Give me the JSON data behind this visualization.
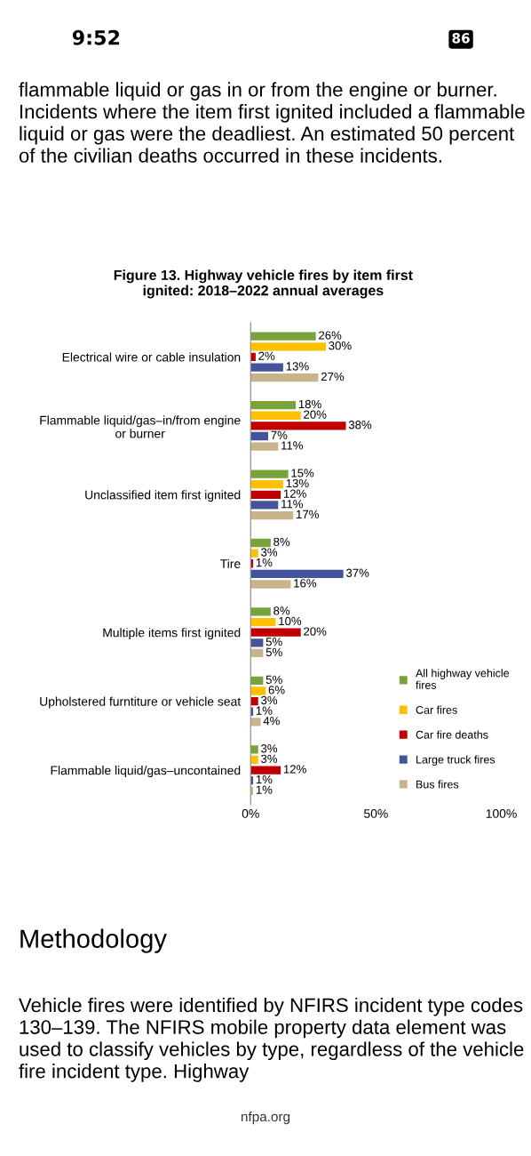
{
  "chart_data": {
    "type": "bar",
    "orientation": "horizontal",
    "title": "Figure 13. Highway vehicle fires by item first\nignited: 2018–2022 annual averages",
    "categories": [
      "Electrical wire or cable insulation",
      "Flammable liquid/gas–in/from engine\nor burner",
      "Unclassified item first ignited",
      "Tire",
      "Multiple items first ignited",
      "Upholstered furntiture or vehicle seat",
      "Flammable liquid/gas–uncontained"
    ],
    "series": [
      {
        "name": "All highway vehicle\nfires",
        "color": "#77a33a",
        "values": [
          26,
          18,
          15,
          8,
          8,
          5,
          3
        ],
        "value_labels": [
          "26%",
          "18%",
          "15%",
          "8%",
          "8%",
          "5%",
          "3%"
        ]
      },
      {
        "name": "Car fires",
        "color": "#ffc000",
        "values": [
          30,
          20,
          13,
          3,
          10,
          6,
          3
        ],
        "value_labels": [
          "30%",
          "20%",
          "13%",
          "3%",
          "10%",
          "6%",
          "3%"
        ]
      },
      {
        "name": "Car fire deaths",
        "color": "#c00000",
        "values": [
          2,
          38,
          12,
          1,
          20,
          3,
          12
        ],
        "value_labels": [
          "2%",
          "38%",
          "12%",
          "1%",
          "20%",
          "3%",
          "12%"
        ]
      },
      {
        "name": "Large truck fires",
        "color": "#44549b",
        "values": [
          13,
          7,
          11,
          37,
          5,
          1,
          1
        ],
        "value_labels": [
          "13%",
          "7%",
          "11%",
          "37%",
          "5%",
          "1%",
          "1%"
        ]
      },
      {
        "name": "Bus fires",
        "color": "#c8b48a",
        "values": [
          27,
          11,
          17,
          16,
          5,
          4,
          1
        ],
        "value_labels": [
          "27%",
          "11%",
          "17%",
          "16%",
          "5%",
          "4%",
          "1%"
        ]
      }
    ],
    "xlim": [
      0,
      100
    ],
    "xticks": [
      {
        "value": 0,
        "label": "0%"
      },
      {
        "value": 50,
        "label": "50%"
      },
      {
        "value": 100,
        "label": "100%"
      }
    ],
    "legend": "bottom right",
    "grid": false,
    "annotations": [
      "9:52",
      "86",
      "flammable liquid or gas in or from the engine or burner. Incidents where the item first ignited included a flammable liquid or gas were the deadliest. An estimated 50 percent of the civilian deaths occurred in these incidents.",
      "Methodology",
      "Vehicle fires were identified by NFIRS incident type codes 130–139. The NFIRS mobile property data element was used to classify vehicles by type, regardless of the vehicle fire incident type. Highway",
      "nfpa.org"
    ]
  }
}
